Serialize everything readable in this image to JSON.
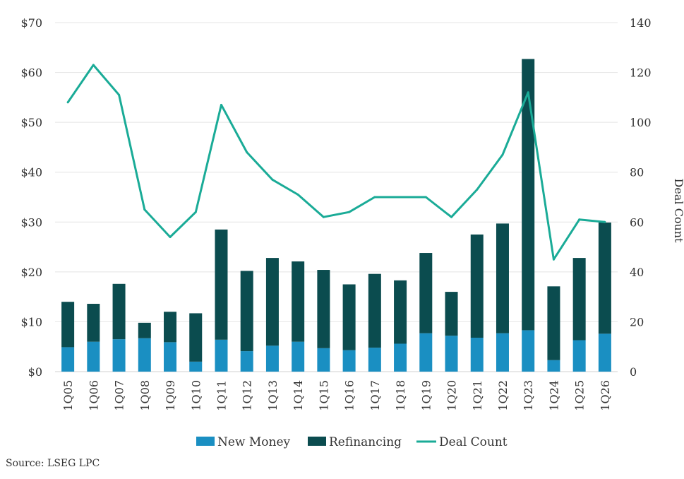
{
  "chart_data": {
    "type": "bar",
    "stacked": true,
    "categories": [
      "1Q05",
      "1Q06",
      "1Q07",
      "1Q08",
      "1Q09",
      "1Q10",
      "1Q11",
      "1Q12",
      "1Q13",
      "1Q14",
      "1Q15",
      "1Q16",
      "1Q17",
      "1Q18",
      "1Q19",
      "1Q20",
      "1Q21",
      "1Q22",
      "1Q23",
      "1Q24",
      "1Q25",
      "1Q26"
    ],
    "series": [
      {
        "name": "New Money",
        "type": "bar",
        "color": "#1a8fc2",
        "values": [
          4.9,
          6.0,
          6.5,
          6.7,
          5.9,
          2.0,
          6.4,
          4.1,
          5.2,
          6.0,
          4.7,
          4.3,
          4.8,
          5.6,
          7.7,
          7.2,
          6.8,
          7.7,
          8.3,
          2.3,
          6.3,
          7.6
        ]
      },
      {
        "name": "Refinancing",
        "type": "bar",
        "color": "#0b4c4f",
        "values": [
          9.1,
          7.6,
          11.1,
          3.1,
          6.1,
          9.7,
          22.1,
          16.1,
          17.6,
          16.1,
          15.7,
          13.2,
          14.8,
          12.7,
          16.1,
          8.8,
          20.7,
          22.0,
          54.4,
          14.8,
          16.5,
          22.3
        ]
      },
      {
        "name": "Deal Count",
        "type": "line",
        "axis": "right",
        "color": "#1aab97",
        "values": [
          108,
          123,
          111,
          65,
          54,
          64,
          107,
          88,
          77,
          71,
          62,
          64,
          70,
          70,
          70,
          62,
          73,
          87,
          112,
          45,
          61,
          60
        ]
      }
    ],
    "left_axis": {
      "min": 0,
      "max": 70,
      "step": 10,
      "tick_labels": [
        "$0",
        "$10",
        "$20",
        "$30",
        "$40",
        "$50",
        "$60",
        "$70"
      ]
    },
    "right_axis": {
      "min": 0,
      "max": 140,
      "step": 20,
      "label": "Deal Count",
      "tick_labels": [
        "0",
        "20",
        "40",
        "60",
        "80",
        "100",
        "120",
        "140"
      ]
    },
    "legend": {
      "position": "bottom",
      "items": [
        "New Money",
        "Refinancing",
        "Deal Count"
      ]
    },
    "source": "Source: LSEG LPC"
  }
}
